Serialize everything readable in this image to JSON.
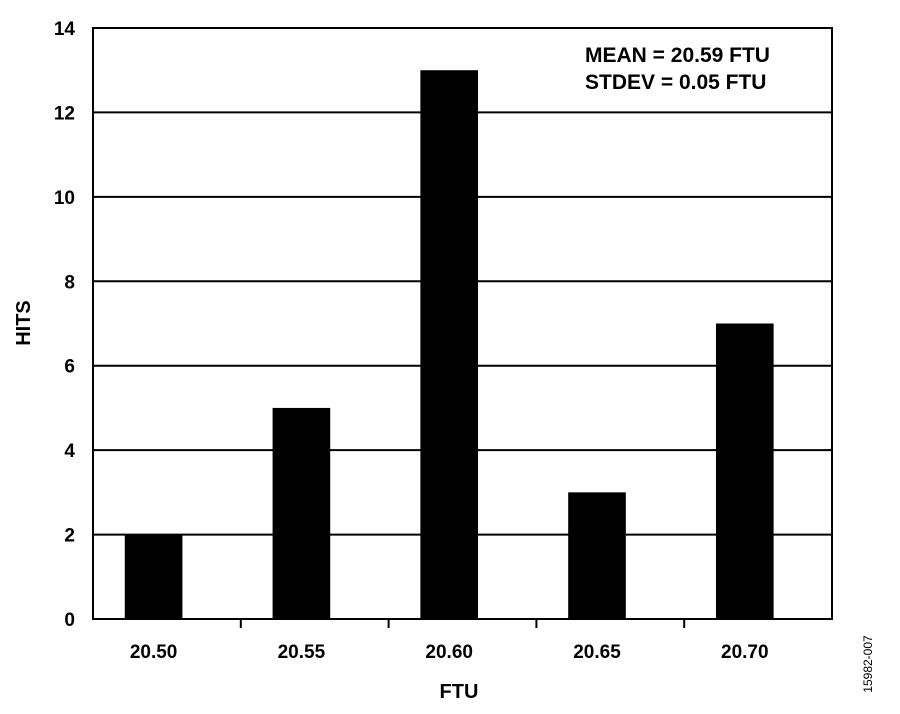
{
  "chart_data": {
    "type": "bar",
    "categories": [
      "20.50",
      "20.55",
      "20.60",
      "20.65",
      "20.70"
    ],
    "values": [
      2,
      5,
      13,
      3,
      7
    ],
    "xlabel": "FTU",
    "ylabel": "HITS",
    "ylim": [
      0,
      14
    ],
    "yticks": [
      "0",
      "2",
      "4",
      "6",
      "8",
      "10",
      "12",
      "14"
    ],
    "grid": "horizontal",
    "bar_color": "#000000",
    "annotations": [
      "MEAN = 20.59 FTU",
      "STDEV = 0.05 FTU"
    ],
    "figure_id": "15982-007"
  }
}
